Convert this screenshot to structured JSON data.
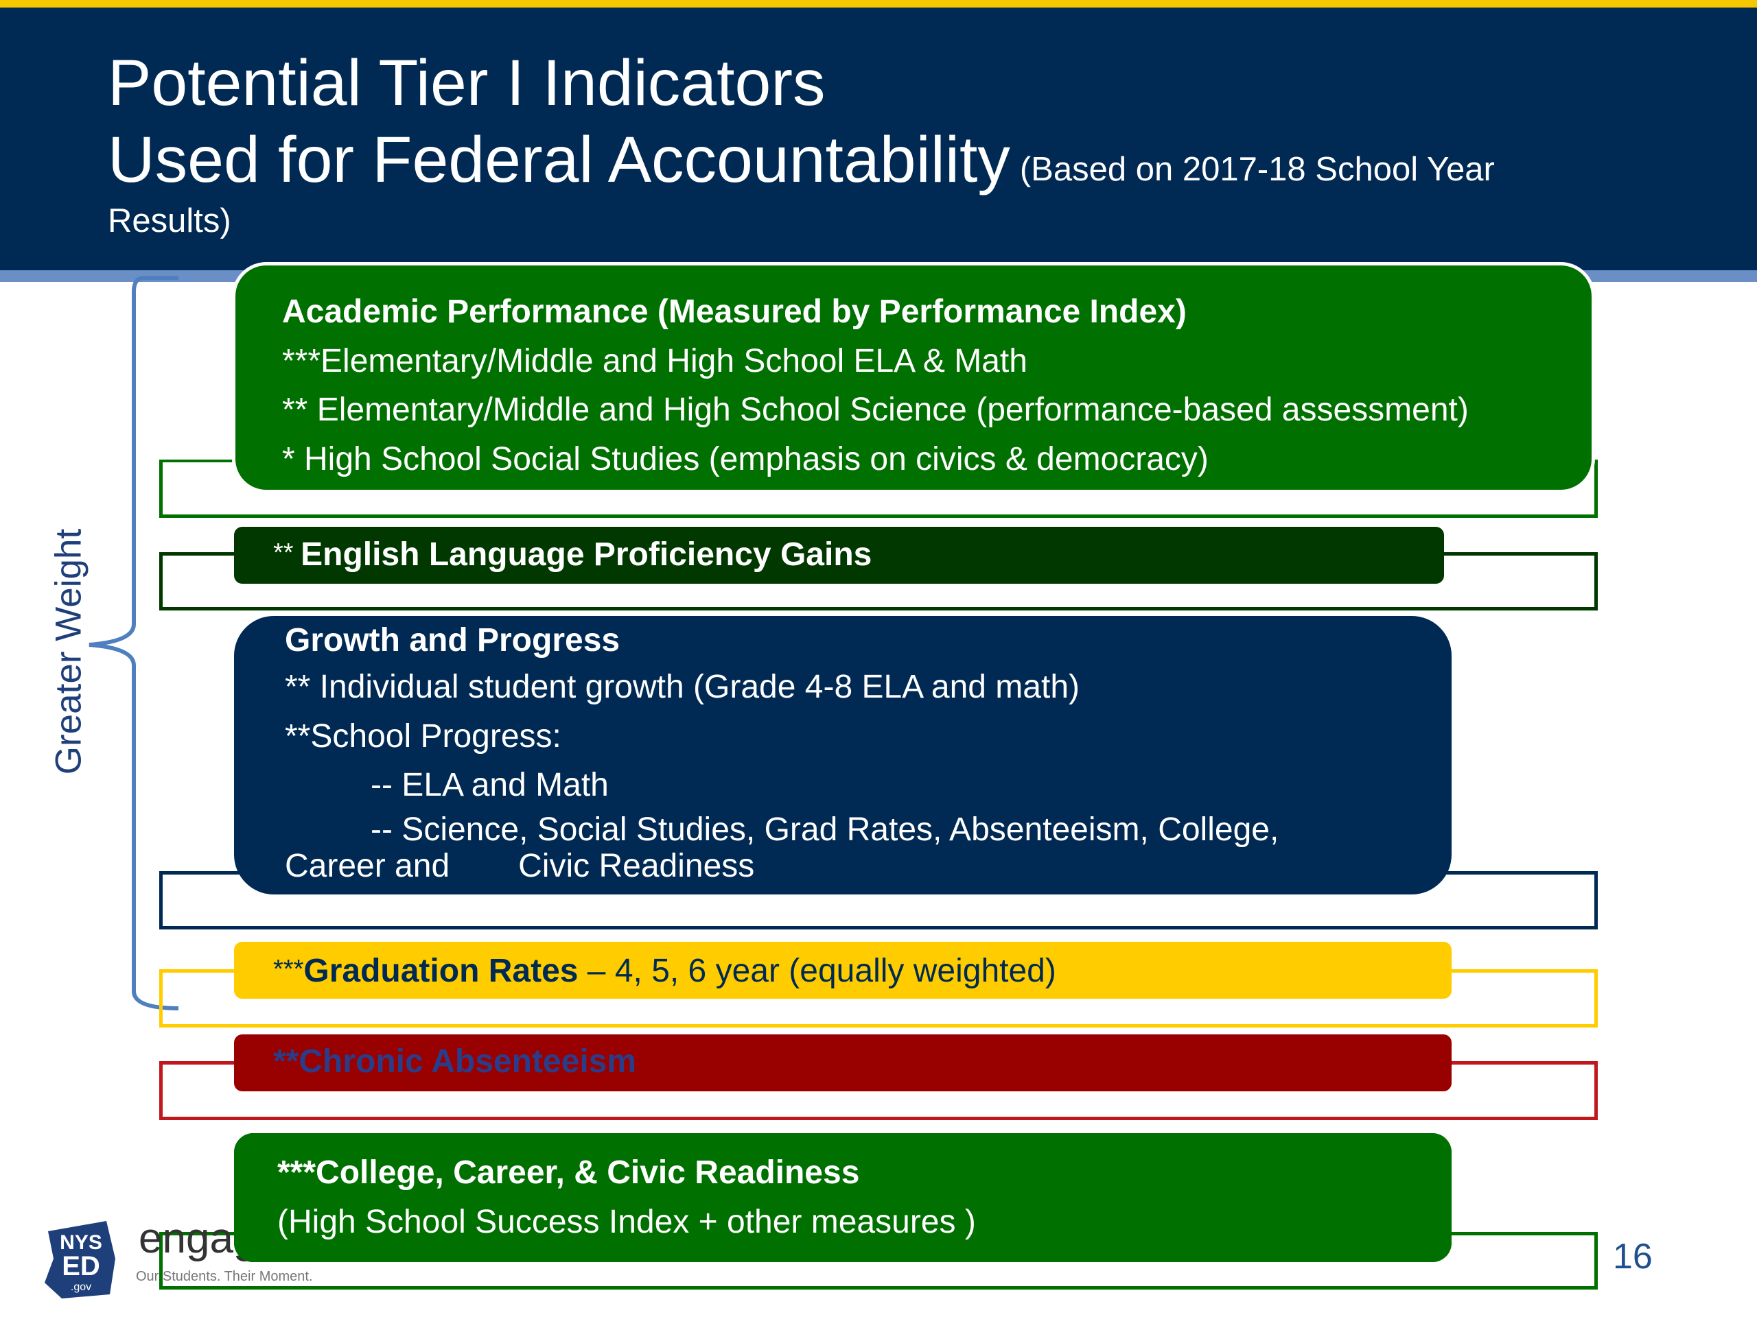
{
  "header": {
    "title_line1": "Potential Tier I Indicators",
    "title_line2": "Used for Federal Accountability",
    "subtitle_part1": "(Based on 2017-18 School Year",
    "subtitle_part2": "Results)"
  },
  "side_label": "Greater Weight",
  "indicators": {
    "academic": {
      "heading": "Academic Performance (Measured by Performance Index)",
      "line1": "***Elementary/Middle and High School ELA & Math",
      "line2": "** Elementary/Middle and High School Science (performance-based assessment)",
      "line3": "* High School Social Studies (emphasis on civics & democracy)"
    },
    "elp": {
      "prefix": "** ",
      "label": "English Language Proficiency Gains"
    },
    "growth": {
      "heading": "Growth and  Progress",
      "line1": "** Individual student growth (Grade 4-8 ELA and math)",
      "line2": "**School Progress:",
      "line3": "-- ELA and Math",
      "line4": "-- Science, Social Studies, Grad Rates, Absenteeism, College,",
      "line5a": "Career and",
      "line5b": "Civic Readiness"
    },
    "graduation": {
      "prefix": "***",
      "label": "Graduation Rates",
      "detail": " – 4, 5, 6 year (equally weighted)"
    },
    "absenteeism": {
      "label": "**Chronic Absenteeism"
    },
    "ccr": {
      "heading": "***College, Career, & Civic Readiness",
      "line1": "(High School Success Index + other measures )"
    }
  },
  "footer": {
    "logo_text_top": "NYS",
    "logo_text_mid": "ED",
    "logo_text_bot": ".gov",
    "engage": "engage",
    "tagline": "Our Students. Their Moment.",
    "page_number": "16"
  },
  "colors": {
    "navy": "#002a54",
    "green": "#007000",
    "dark_green": "#003800",
    "yellow": "#ffcc00",
    "red": "#990000",
    "accent_line": "#f5c700"
  }
}
